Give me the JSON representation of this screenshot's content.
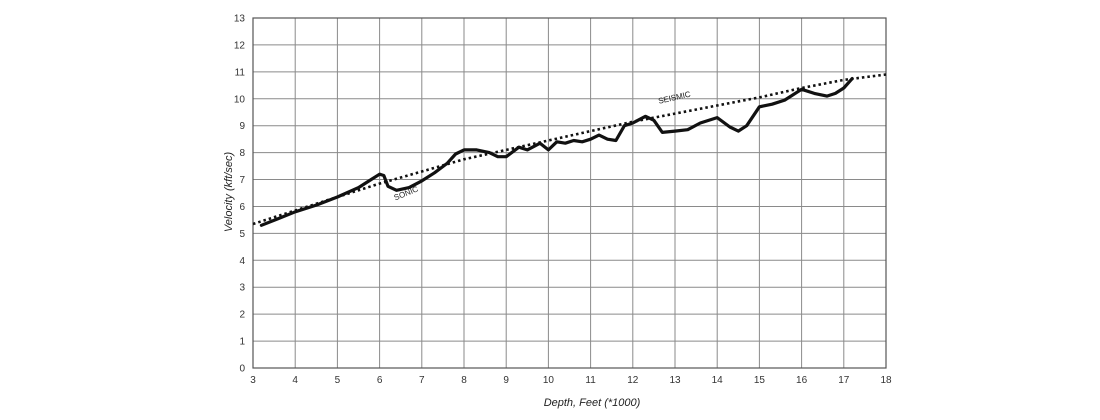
{
  "chart_data": {
    "type": "line",
    "xlabel": "Depth, Feet (*1000)",
    "ylabel": "Velocity (kft/sec)",
    "xlim": [
      3,
      18
    ],
    "ylim": [
      0,
      13
    ],
    "x_ticks": [
      "3",
      "4",
      "5",
      "6",
      "7",
      "8",
      "9",
      "10",
      "11",
      "12",
      "13",
      "14",
      "15",
      "16",
      "17",
      "18"
    ],
    "y_ticks": [
      "0",
      "1",
      "2",
      "3",
      "4",
      "5",
      "6",
      "7",
      "8",
      "9",
      "10",
      "11",
      "12",
      "13"
    ],
    "grid": true,
    "annotations": [
      {
        "text": "SEISMIC",
        "x": 13.0,
        "y": 9.95,
        "angle": -13
      },
      {
        "text": "SONIC",
        "x": 6.65,
        "y": 6.4,
        "angle": -22
      }
    ],
    "series": [
      {
        "name": "SEISMIC",
        "style": "dotted",
        "x": [
          3.0,
          4.0,
          5.0,
          6.0,
          7.0,
          8.0,
          9.0,
          10.0,
          11.0,
          12.0,
          13.0,
          14.0,
          15.0,
          16.0,
          17.0,
          18.0
        ],
        "y": [
          5.35,
          5.85,
          6.35,
          6.85,
          7.3,
          7.75,
          8.1,
          8.45,
          8.8,
          9.15,
          9.45,
          9.75,
          10.05,
          10.4,
          10.7,
          10.9
        ]
      },
      {
        "name": "SONIC",
        "style": "solid",
        "x": [
          3.2,
          3.6,
          4.0,
          4.5,
          5.0,
          5.5,
          5.8,
          6.0,
          6.1,
          6.2,
          6.4,
          6.7,
          7.0,
          7.3,
          7.6,
          7.8,
          8.0,
          8.3,
          8.6,
          8.8,
          9.0,
          9.3,
          9.5,
          9.8,
          10.0,
          10.2,
          10.4,
          10.6,
          10.8,
          11.0,
          11.2,
          11.4,
          11.6,
          11.8,
          12.0,
          12.3,
          12.5,
          12.7,
          13.0,
          13.3,
          13.6,
          14.0,
          14.3,
          14.5,
          14.7,
          15.0,
          15.3,
          15.6,
          16.0,
          16.3,
          16.6,
          16.8,
          17.0,
          17.2
        ],
        "y": [
          5.3,
          5.55,
          5.8,
          6.05,
          6.35,
          6.7,
          7.0,
          7.2,
          7.15,
          6.75,
          6.6,
          6.7,
          6.95,
          7.25,
          7.6,
          7.95,
          8.1,
          8.1,
          8.0,
          7.85,
          7.85,
          8.2,
          8.1,
          8.35,
          8.1,
          8.4,
          8.35,
          8.45,
          8.4,
          8.5,
          8.65,
          8.5,
          8.45,
          9.0,
          9.1,
          9.35,
          9.2,
          8.75,
          8.8,
          8.85,
          9.1,
          9.3,
          8.95,
          8.8,
          9.0,
          9.7,
          9.8,
          9.95,
          10.35,
          10.2,
          10.1,
          10.2,
          10.4,
          10.75
        ]
      }
    ]
  }
}
